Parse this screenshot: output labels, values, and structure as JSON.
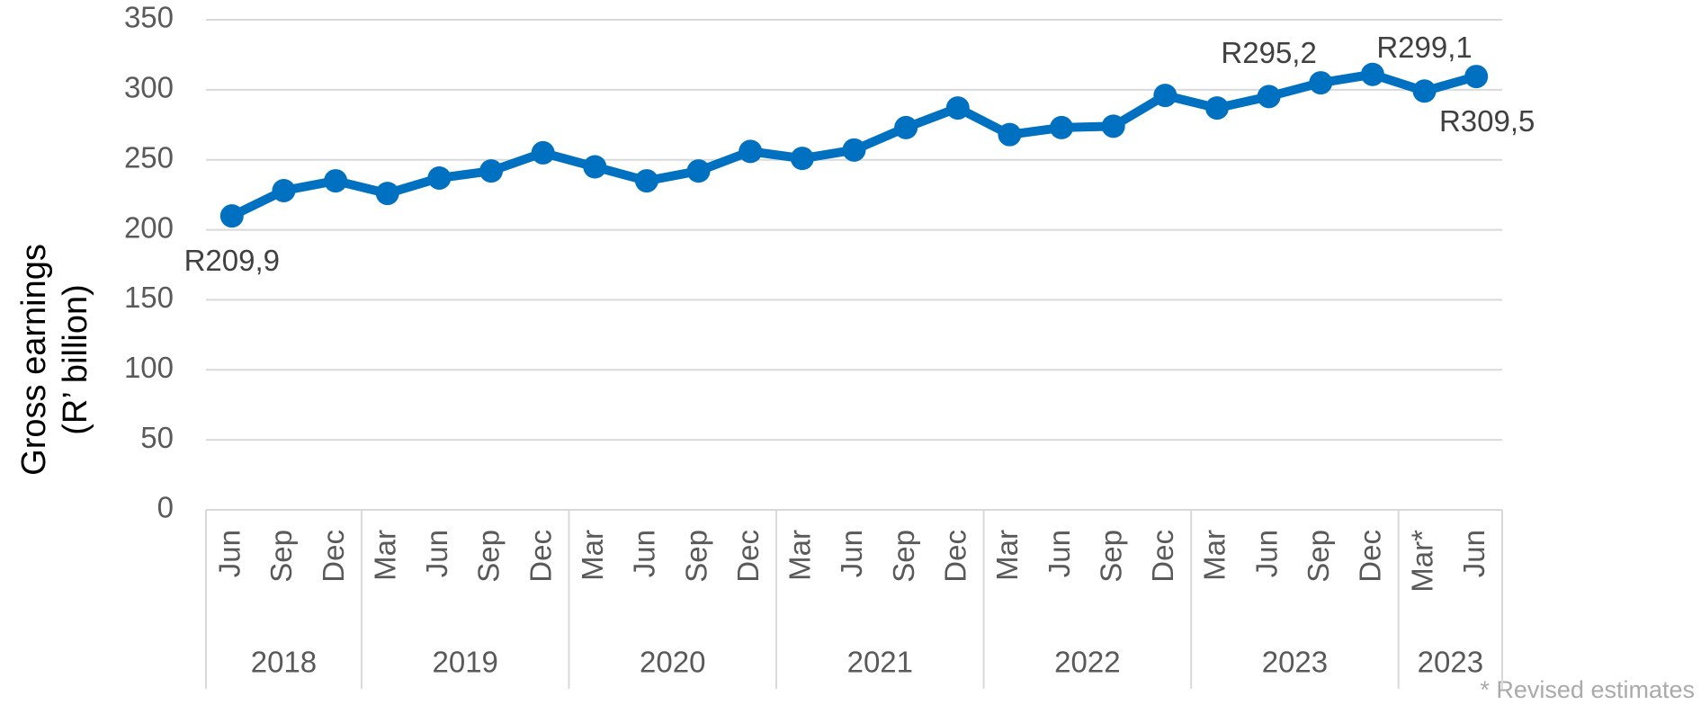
{
  "chart_data": {
    "type": "line",
    "y_label": [
      "Gross earnings",
      "(R’ billion)"
    ],
    "categories": [
      "Jun",
      "Sep",
      "Dec",
      "Mar",
      "Jun",
      "Sep",
      "Dec",
      "Mar",
      "Jun",
      "Sep",
      "Dec",
      "Mar",
      "Jun",
      "Sep",
      "Dec",
      "Mar",
      "Jun",
      "Sep",
      "Dec",
      "Mar",
      "Jun",
      "Sep",
      "Dec",
      "Mar*",
      "Jun"
    ],
    "groups": [
      {
        "label": "2018",
        "count": 3
      },
      {
        "label": "2019",
        "count": 4
      },
      {
        "label": "2020",
        "count": 4
      },
      {
        "label": "2021",
        "count": 4
      },
      {
        "label": "2022",
        "count": 4
      },
      {
        "label": "2023",
        "count": 4
      },
      {
        "label": "2023",
        "count": 2
      }
    ],
    "series": [
      {
        "color": "#0070c0",
        "values": [
          209.9,
          228,
          235,
          226,
          237,
          242,
          255,
          245,
          235,
          242,
          256,
          251,
          257,
          273,
          287,
          268,
          273,
          274,
          296,
          287,
          295.2,
          305,
          311,
          299.1,
          309.5
        ],
        "value_labels": [
          "R209,9",
          null,
          null,
          null,
          null,
          null,
          null,
          null,
          null,
          null,
          null,
          null,
          null,
          null,
          null,
          null,
          null,
          null,
          null,
          null,
          "R295,2",
          null,
          null,
          "R299,1",
          "R309,5"
        ]
      }
    ],
    "ylim": [
      0,
      350
    ],
    "yticks": [
      0,
      50,
      100,
      150,
      200,
      250,
      300,
      350
    ],
    "grid": true,
    "footnote": "* Revised estimates"
  }
}
